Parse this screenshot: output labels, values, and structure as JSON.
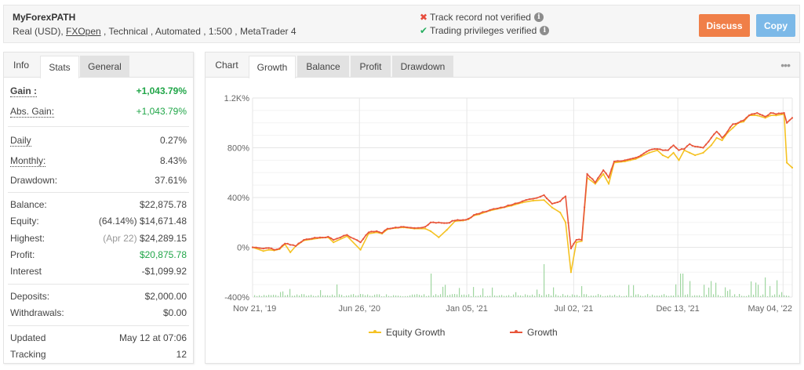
{
  "header": {
    "title": "MyForexPATH",
    "subtitle_prefix": "Real (USD), ",
    "broker": "FXOpen",
    "subtitle_suffix": " , Technical , Automated , 1:500 , MetaTrader 4",
    "verifications": [
      {
        "status": "not-verified",
        "icon": "cross-icon",
        "text": "Track record not verified"
      },
      {
        "status": "verified",
        "icon": "check-icon",
        "text": "Trading privileges verified"
      }
    ],
    "buttons": {
      "discuss": "Discuss",
      "copy": "Copy"
    },
    "colors": {
      "discuss": "#f07f48",
      "copy": "#7cb9e8"
    }
  },
  "left_panel": {
    "tabs": [
      {
        "label": "Info",
        "state": "label"
      },
      {
        "label": "Stats",
        "state": "active"
      },
      {
        "label": "General",
        "state": "inactive"
      }
    ],
    "stats": {
      "gain": {
        "label": "Gain :",
        "value": "+1,043.79%"
      },
      "abs_gain": {
        "label": "Abs. Gain:",
        "value": "+1,043.79%"
      },
      "daily": {
        "label": "Daily",
        "value": "0.27%"
      },
      "monthly": {
        "label": "Monthly:",
        "value": "8.43%"
      },
      "drawdown": {
        "label": "Drawdown:",
        "value": "37.61%"
      },
      "balance": {
        "label": "Balance:",
        "value": "$22,875.78"
      },
      "equity": {
        "label": "Equity:",
        "note": "(64.14%)",
        "value": "$14,671.48"
      },
      "highest": {
        "label": "Highest:",
        "note": "(Apr 22)",
        "value": "$24,289.15"
      },
      "profit": {
        "label": "Profit:",
        "value": "$20,875.78"
      },
      "interest": {
        "label": "Interest",
        "value": "-$1,099.92"
      },
      "deposits": {
        "label": "Deposits:",
        "value": "$2,000.00"
      },
      "withdrawals": {
        "label": "Withdrawals:",
        "value": "$0.00"
      },
      "updated": {
        "label": "Updated",
        "value": "May 12 at 07:06"
      },
      "tracking": {
        "label": "Tracking",
        "value": "12"
      }
    }
  },
  "right_panel": {
    "tabs": [
      {
        "label": "Chart",
        "state": "label"
      },
      {
        "label": "Growth",
        "state": "active"
      },
      {
        "label": "Balance",
        "state": "inactive"
      },
      {
        "label": "Profit",
        "state": "inactive"
      },
      {
        "label": "Drawdown",
        "state": "inactive"
      }
    ],
    "more_icon": "•••",
    "legend": {
      "equity": "Equity Growth",
      "growth": "Growth"
    }
  },
  "chart_data": {
    "type": "line",
    "title": "",
    "xlabel": "",
    "ylabel": "",
    "ylim": [
      -400,
      1200
    ],
    "y_ticks": [
      "1.2K%",
      "800%",
      "400%",
      "0%",
      "-400%"
    ],
    "x_ticks": [
      "Nov 21, '19",
      "Jun 26, '20",
      "Jan 05, '21",
      "Jul 02, '21",
      "Dec 13, '21",
      "May 04, '22"
    ],
    "grid": true,
    "legend_position": "bottom",
    "colors": {
      "growth": "#e8553a",
      "equity": "#f5c223",
      "volume_bars": "#9fd6a0"
    },
    "x": [
      0,
      0.02,
      0.03,
      0.04,
      0.05,
      0.06,
      0.07,
      0.08,
      0.095,
      0.11,
      0.125,
      0.14,
      0.15,
      0.175,
      0.2,
      0.215,
      0.23,
      0.24,
      0.25,
      0.265,
      0.28,
      0.3,
      0.32,
      0.33,
      0.345,
      0.36,
      0.375,
      0.39,
      0.4,
      0.41,
      0.42,
      0.44,
      0.46,
      0.48,
      0.5,
      0.52,
      0.54,
      0.555,
      0.57,
      0.58,
      0.59,
      0.6,
      0.61,
      0.62,
      0.635,
      0.65,
      0.66,
      0.67,
      0.69,
      0.7,
      0.71,
      0.72,
      0.735,
      0.75,
      0.76,
      0.77,
      0.78,
      0.79,
      0.8,
      0.81,
      0.82,
      0.835,
      0.85,
      0.86,
      0.87,
      0.88,
      0.89,
      0.9,
      0.91,
      0.92,
      0.935,
      0.95,
      0.96,
      0.97,
      0.985,
      0.99,
      1.0
    ],
    "series": [
      {
        "name": "Growth",
        "values": [
          0,
          -10,
          -5,
          -20,
          -10,
          30,
          20,
          10,
          60,
          70,
          80,
          85,
          60,
          100,
          40,
          120,
          130,
          115,
          150,
          160,
          165,
          155,
          165,
          200,
          200,
          195,
          215,
          220,
          230,
          260,
          270,
          300,
          320,
          340,
          370,
          390,
          420,
          350,
          370,
          410,
          -10,
          60,
          60,
          590,
          520,
          620,
          560,
          690,
          700,
          710,
          720,
          740,
          780,
          790,
          780,
          780,
          820,
          780,
          790,
          830,
          810,
          800,
          880,
          930,
          880,
          930,
          990,
          1000,
          1020,
          1060,
          1080,
          1050,
          1080,
          1070,
          1080,
          1000,
          1040
        ]
      },
      {
        "name": "Equity Growth",
        "values": [
          0,
          -30,
          -20,
          -25,
          -15,
          25,
          -40,
          10,
          55,
          65,
          75,
          80,
          40,
          90,
          -20,
          110,
          120,
          110,
          145,
          155,
          160,
          150,
          150,
          130,
          80,
          140,
          210,
          215,
          225,
          255,
          265,
          295,
          315,
          335,
          360,
          375,
          380,
          320,
          280,
          200,
          -200,
          40,
          50,
          560,
          510,
          590,
          510,
          680,
          690,
          700,
          710,
          730,
          760,
          780,
          740,
          720,
          760,
          700,
          780,
          760,
          740,
          760,
          820,
          880,
          860,
          920,
          960,
          1000,
          1010,
          1060,
          1060,
          1040,
          1060,
          1060,
          1070,
          680,
          640
        ]
      }
    ],
    "volume_bars": "small green bars along -400% baseline, largest near Jul '21"
  }
}
